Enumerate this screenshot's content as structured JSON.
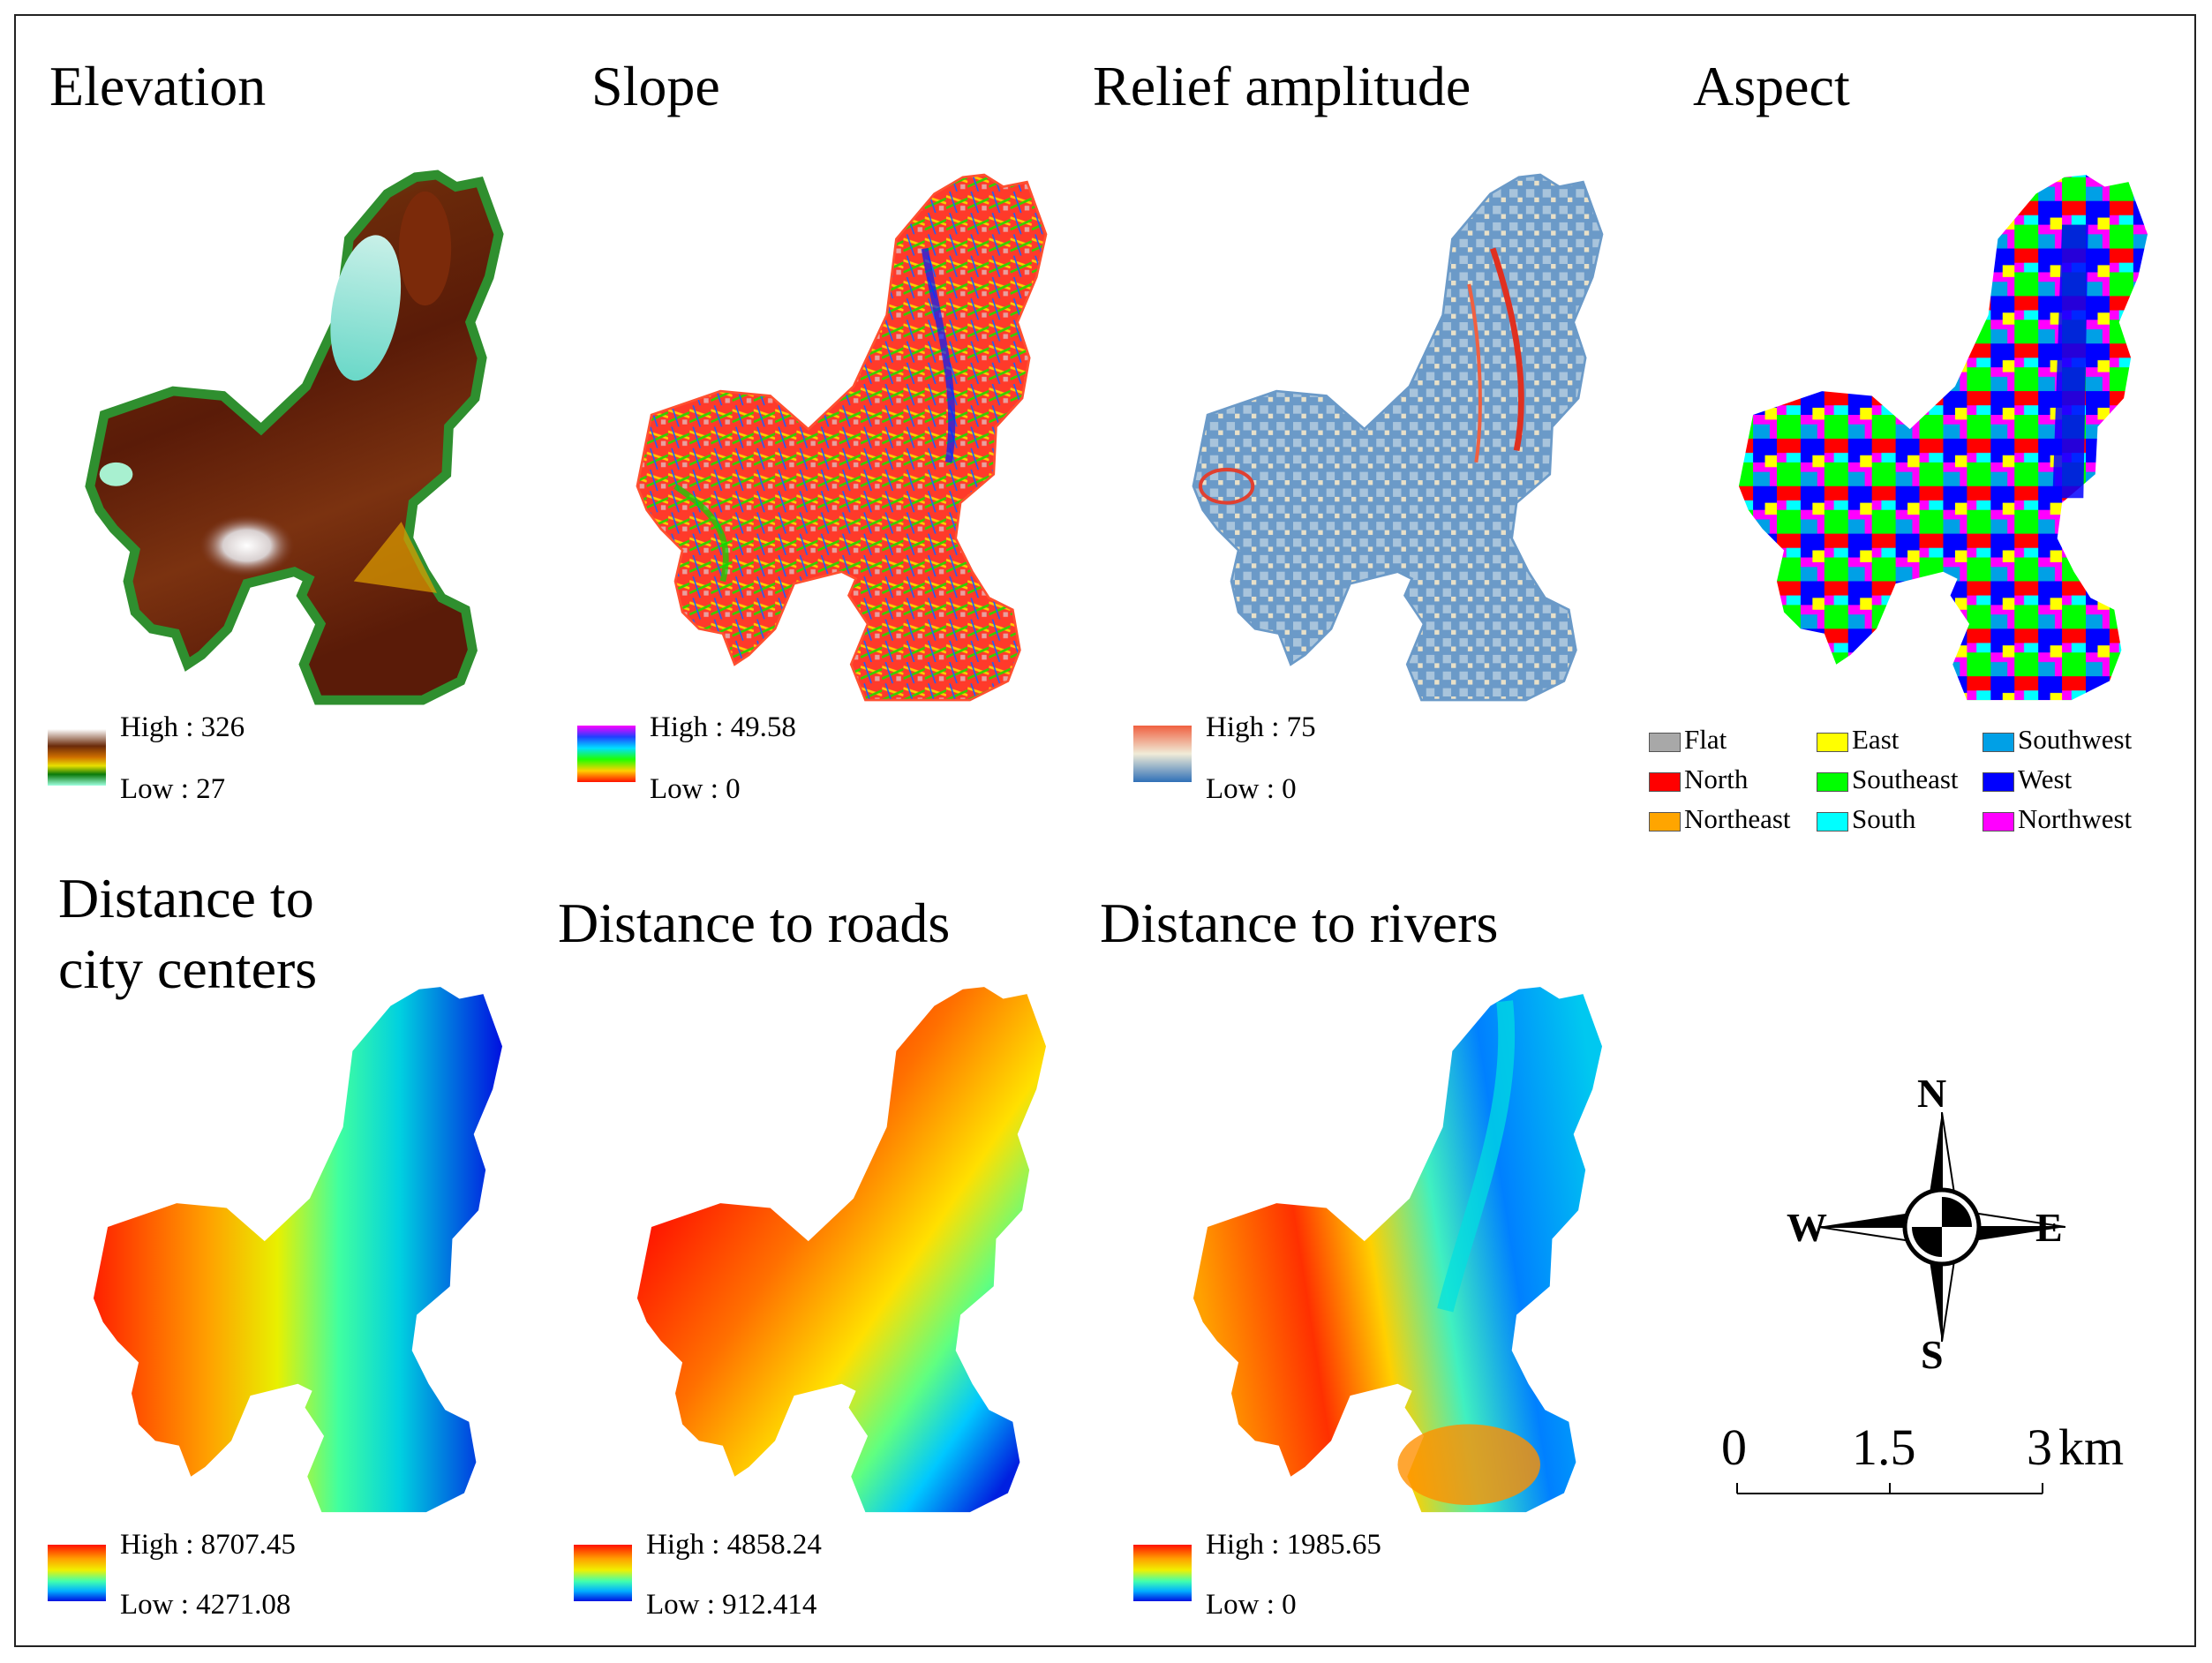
{
  "panels": [
    {
      "id": "elevation",
      "title": "Elevation",
      "high": "High : 326",
      "low": "Low : 27"
    },
    {
      "id": "slope",
      "title": "Slope",
      "high": "High : 49.58",
      "low": "Low : 0"
    },
    {
      "id": "relief",
      "title": "Relief amplitude",
      "high": "High : 75",
      "low": "Low : 0"
    },
    {
      "id": "aspect",
      "title": "Aspect"
    },
    {
      "id": "city",
      "title_line1": "Distance to",
      "title_line2": "city centers",
      "high": "High : 8707.45",
      "low": "Low : 4271.08"
    },
    {
      "id": "roads",
      "title": "Distance to roads",
      "high": "High : 4858.24",
      "low": "Low : 912.414"
    },
    {
      "id": "rivers",
      "title": "Distance to rivers",
      "high": "High : 1985.65",
      "low": "Low : 0"
    }
  ],
  "aspect_legend": [
    {
      "label": "Flat",
      "color": "#a8a8a8"
    },
    {
      "label": "North",
      "color": "#ff0000"
    },
    {
      "label": "Northeast",
      "color": "#ffa500"
    },
    {
      "label": "East",
      "color": "#ffff00"
    },
    {
      "label": "Southeast",
      "color": "#00ff00"
    },
    {
      "label": "South",
      "color": "#00ffff"
    },
    {
      "label": "Southwest",
      "color": "#00a0e6"
    },
    {
      "label": "West",
      "color": "#0000ff"
    },
    {
      "label": "Northwest",
      "color": "#ff00ff"
    }
  ],
  "compass": {
    "n": "N",
    "s": "S",
    "e": "E",
    "w": "W"
  },
  "scale_bar": {
    "labels": [
      "0",
      "1.5",
      "3"
    ],
    "unit": "km"
  }
}
